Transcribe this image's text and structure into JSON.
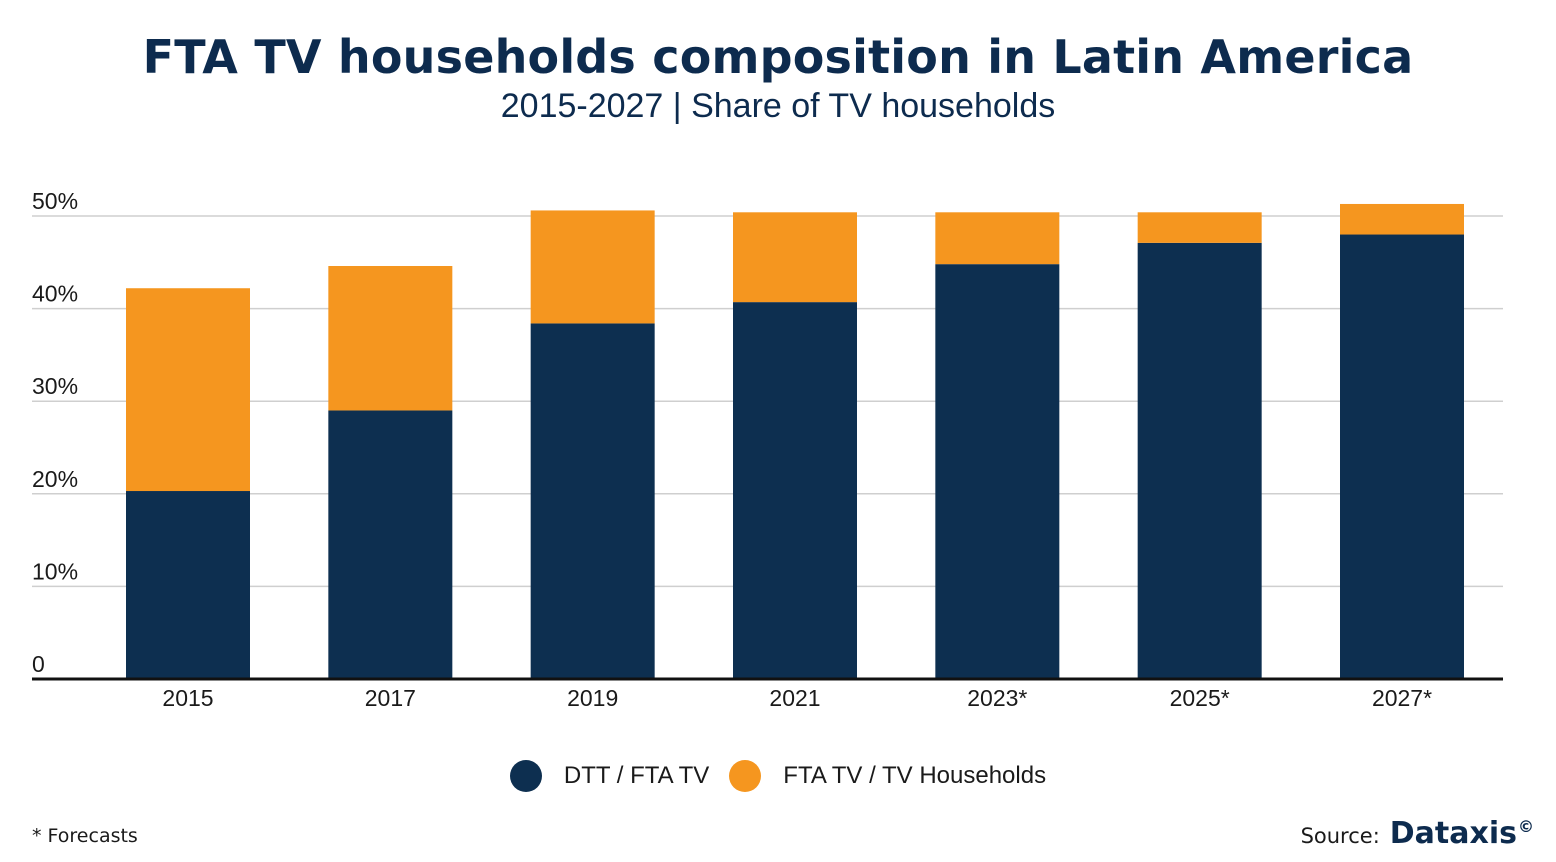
{
  "header": {
    "title": "FTA TV households composition in Latin America",
    "subtitle": "2015-2027 | Share of TV households"
  },
  "colors": {
    "dtt": "#0d2f50",
    "fta": "#f5961f",
    "grid": "#cfcfcf",
    "axis": "#111111"
  },
  "chart_data": {
    "type": "bar",
    "stacked": true,
    "categories": [
      "2015",
      "2017",
      "2019",
      "2021",
      "2023*",
      "2025*",
      "2027*"
    ],
    "series": [
      {
        "name": "DTT / FTA TV",
        "values": [
          20.3,
          29.0,
          38.4,
          40.7,
          44.8,
          47.1,
          48.0
        ]
      },
      {
        "name": "FTA TV / TV Households",
        "values": [
          21.9,
          15.6,
          12.2,
          9.7,
          5.6,
          3.3,
          3.3
        ]
      }
    ],
    "y_ticks": [
      "0",
      "10%",
      "20%",
      "30%",
      "40%",
      "50%"
    ],
    "y_tick_values": [
      0,
      10,
      20,
      30,
      40,
      50
    ],
    "ylim": [
      0,
      50
    ],
    "grid": true,
    "legend_position": "bottom"
  },
  "legend": {
    "items": [
      {
        "label": "DTT / FTA TV",
        "icon": "circle-swatch"
      },
      {
        "label": "FTA TV / TV Households",
        "icon": "circle-swatch"
      }
    ]
  },
  "footer": {
    "note": "* Forecasts",
    "source_label": "Source:",
    "source_brand": "Dataxis",
    "copyright": "©"
  }
}
